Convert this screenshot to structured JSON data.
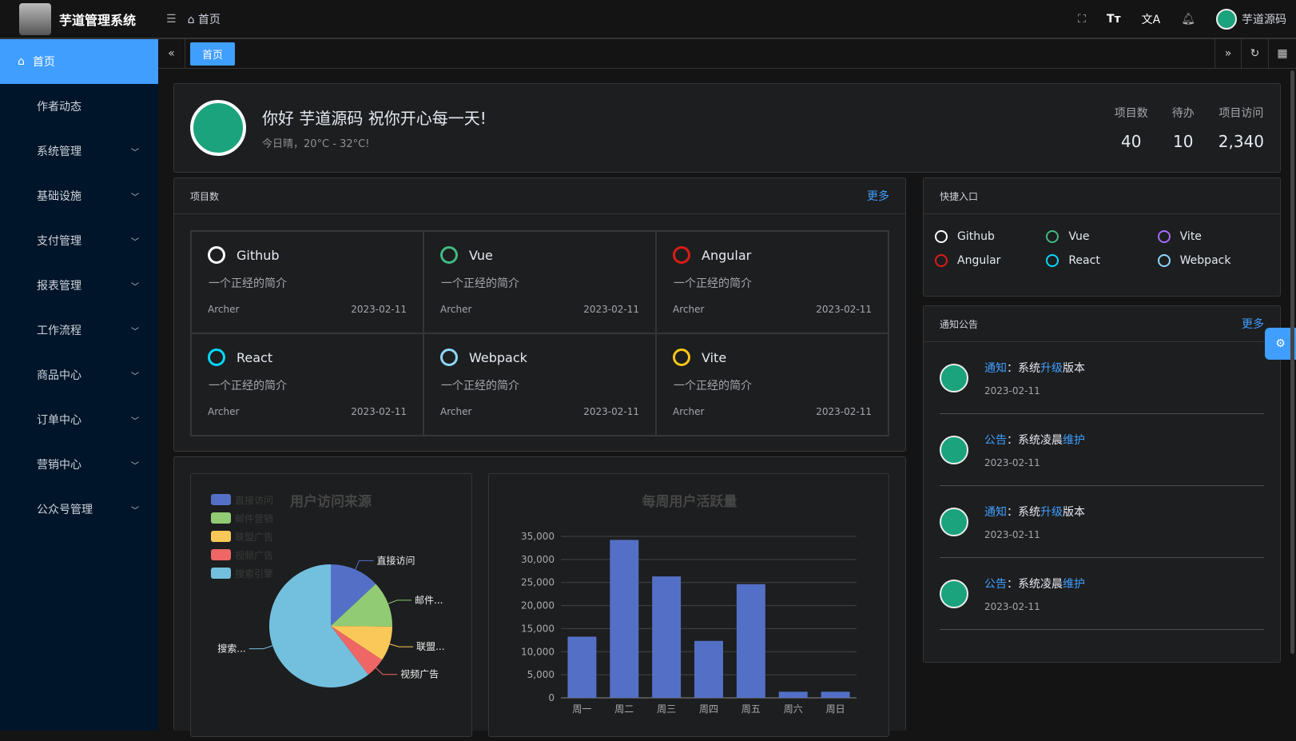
{
  "app": {
    "title": "芋道管理系统",
    "breadcrumb": "首页",
    "user": "芋道源码"
  },
  "header_icons": [
    "fullscreen-icon",
    "font-size-icon",
    "translate-icon",
    "bell-icon"
  ],
  "sidebar": {
    "items": [
      {
        "label": "首页",
        "active": true
      },
      {
        "label": "作者动态"
      },
      {
        "label": "系统管理",
        "expand": true
      },
      {
        "label": "基础设施",
        "expand": true
      },
      {
        "label": "支付管理",
        "expand": true
      },
      {
        "label": "报表管理",
        "expand": true
      },
      {
        "label": "工作流程",
        "expand": true
      },
      {
        "label": "商品中心",
        "expand": true
      },
      {
        "label": "订单中心",
        "expand": true
      },
      {
        "label": "营销中心",
        "expand": true
      },
      {
        "label": "公众号管理",
        "expand": true
      }
    ]
  },
  "tabs": [
    {
      "label": "首页"
    }
  ],
  "welcome": {
    "greeting": "你好 芋道源码 祝你开心每一天!",
    "weather": "今日晴，20°C - 32°C!",
    "stats": [
      {
        "label": "项目数",
        "value": "40"
      },
      {
        "label": "待办",
        "value": "10"
      },
      {
        "label": "项目访问",
        "value": "2,340"
      }
    ]
  },
  "projects": {
    "title": "项目数",
    "more": "更多",
    "items": [
      {
        "name": "Github",
        "desc": "一个正经的简介",
        "author": "Archer",
        "date": "2023-02-11",
        "color": "#ffffff"
      },
      {
        "name": "Vue",
        "desc": "一个正经的简介",
        "author": "Archer",
        "date": "2023-02-11",
        "color": "#42b883"
      },
      {
        "name": "Angular",
        "desc": "一个正经的简介",
        "author": "Archer",
        "date": "2023-02-11",
        "color": "#dd1b16"
      },
      {
        "name": "React",
        "desc": "一个正经的简介",
        "author": "Archer",
        "date": "2023-02-11",
        "color": "#00d8ff"
      },
      {
        "name": "Webpack",
        "desc": "一个正经的简介",
        "author": "Archer",
        "date": "2023-02-11",
        "color": "#8ed6fb"
      },
      {
        "name": "Vite",
        "desc": "一个正经的简介",
        "author": "Archer",
        "date": "2023-02-11",
        "color": "#ffc517"
      }
    ]
  },
  "shortcuts": {
    "title": "快捷入口",
    "items": [
      {
        "name": "Github",
        "color": "#ffffff"
      },
      {
        "name": "Vue",
        "color": "#42b883"
      },
      {
        "name": "Vite",
        "color": "#a46cff"
      },
      {
        "name": "Angular",
        "color": "#dd1b16"
      },
      {
        "name": "React",
        "color": "#00d8ff"
      },
      {
        "name": "Webpack",
        "color": "#8ed6fb"
      }
    ]
  },
  "notices": {
    "title": "通知公告",
    "more": "更多",
    "items": [
      {
        "type": "通知",
        "sep": "：",
        "pre": "系统",
        "hl": "升级",
        "post": "版本",
        "date": "2023-02-11"
      },
      {
        "type": "公告",
        "sep": "：",
        "pre": "系统凌晨",
        "hl": "维护",
        "post": "",
        "date": "2023-02-11"
      },
      {
        "type": "通知",
        "sep": "：",
        "pre": "系统",
        "hl": "升级",
        "post": "版本",
        "date": "2023-02-11"
      },
      {
        "type": "公告",
        "sep": "：",
        "pre": "系统凌晨",
        "hl": "维护",
        "post": "",
        "date": "2023-02-11"
      }
    ]
  },
  "chart_data": [
    {
      "type": "pie",
      "title": "用户访问来源",
      "legend_position": "top-left",
      "labels_shown": [
        "直接访问",
        "邮件...",
        "联盟...",
        "视频广告",
        "搜索..."
      ],
      "slices": [
        {
          "name": "直接访问",
          "value": 335,
          "color": "#5470c6"
        },
        {
          "name": "邮件营销",
          "value": 310,
          "color": "#91cc75"
        },
        {
          "name": "联盟广告",
          "value": 234,
          "color": "#fac858"
        },
        {
          "name": "视频广告",
          "value": 135,
          "color": "#ee6666"
        },
        {
          "name": "搜索引擎",
          "value": 1548,
          "color": "#73c0de"
        }
      ]
    },
    {
      "type": "bar",
      "title": "每周用户活跃量",
      "categories": [
        "周一",
        "周二",
        "周三",
        "周四",
        "周五",
        "周六",
        "周日"
      ],
      "values": [
        13253,
        34235,
        26321,
        12340,
        24643,
        1322,
        1324
      ],
      "ylim": [
        0,
        35000
      ],
      "yticks": [
        "0",
        "5,000",
        "10,000",
        "15,000",
        "20,000",
        "25,000",
        "30,000",
        "35,000"
      ],
      "grid": true,
      "color": "#5470c6"
    }
  ]
}
